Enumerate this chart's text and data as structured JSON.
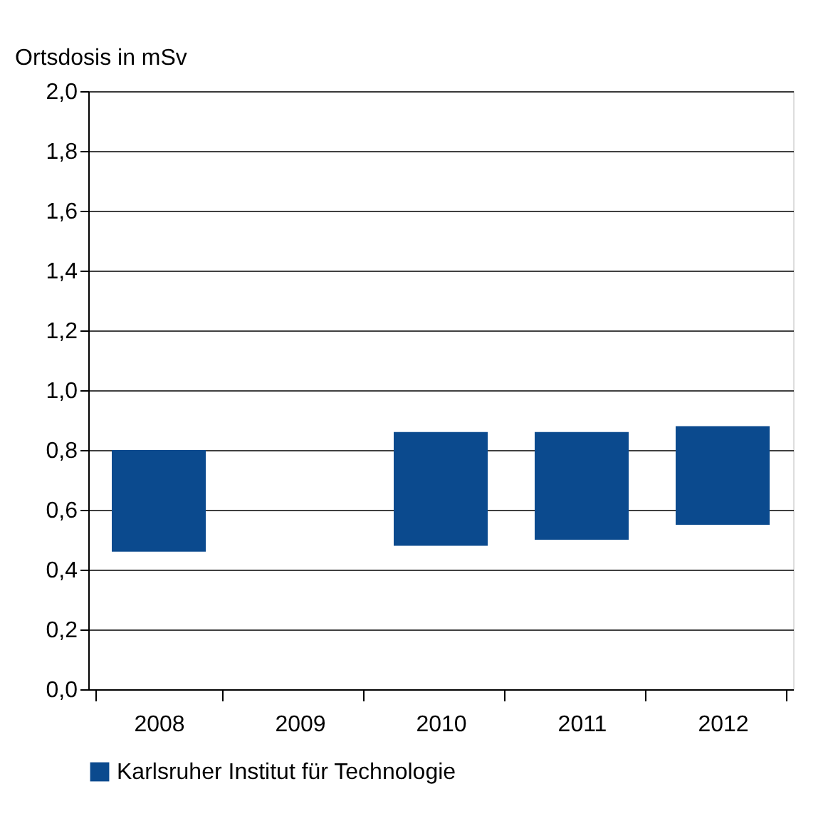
{
  "chart_data": {
    "type": "bar",
    "ylabel": "Ortsdosis in mSv",
    "categories": [
      "2008",
      "2009",
      "2010",
      "2011",
      "2012"
    ],
    "series": [
      {
        "name": "Karlsruher Institut für Technologie",
        "color": "#0b4a8e",
        "values": [
          0.34,
          null,
          0.38,
          0.36,
          0.33
        ],
        "base": [
          0.46,
          null,
          0.48,
          0.5,
          0.55
        ]
      }
    ],
    "ylim": [
      0,
      2.0
    ],
    "yticks": [
      {
        "value": 0,
        "label": "0,0"
      },
      {
        "value": 0.2,
        "label": "0,2"
      },
      {
        "value": 0.4,
        "label": "0,4"
      },
      {
        "value": 0.6,
        "label": "0,6"
      },
      {
        "value": 0.8,
        "label": "0,8"
      },
      {
        "value": 1.0,
        "label": "1,0"
      },
      {
        "value": 1.2,
        "label": "1,2"
      },
      {
        "value": 1.4,
        "label": "1,4"
      },
      {
        "value": 1.6,
        "label": "1,6"
      },
      {
        "value": 1.8,
        "label": "1,8"
      },
      {
        "value": 2.0,
        "label": "2,0"
      }
    ],
    "grid": "y",
    "legend": "bottom"
  }
}
